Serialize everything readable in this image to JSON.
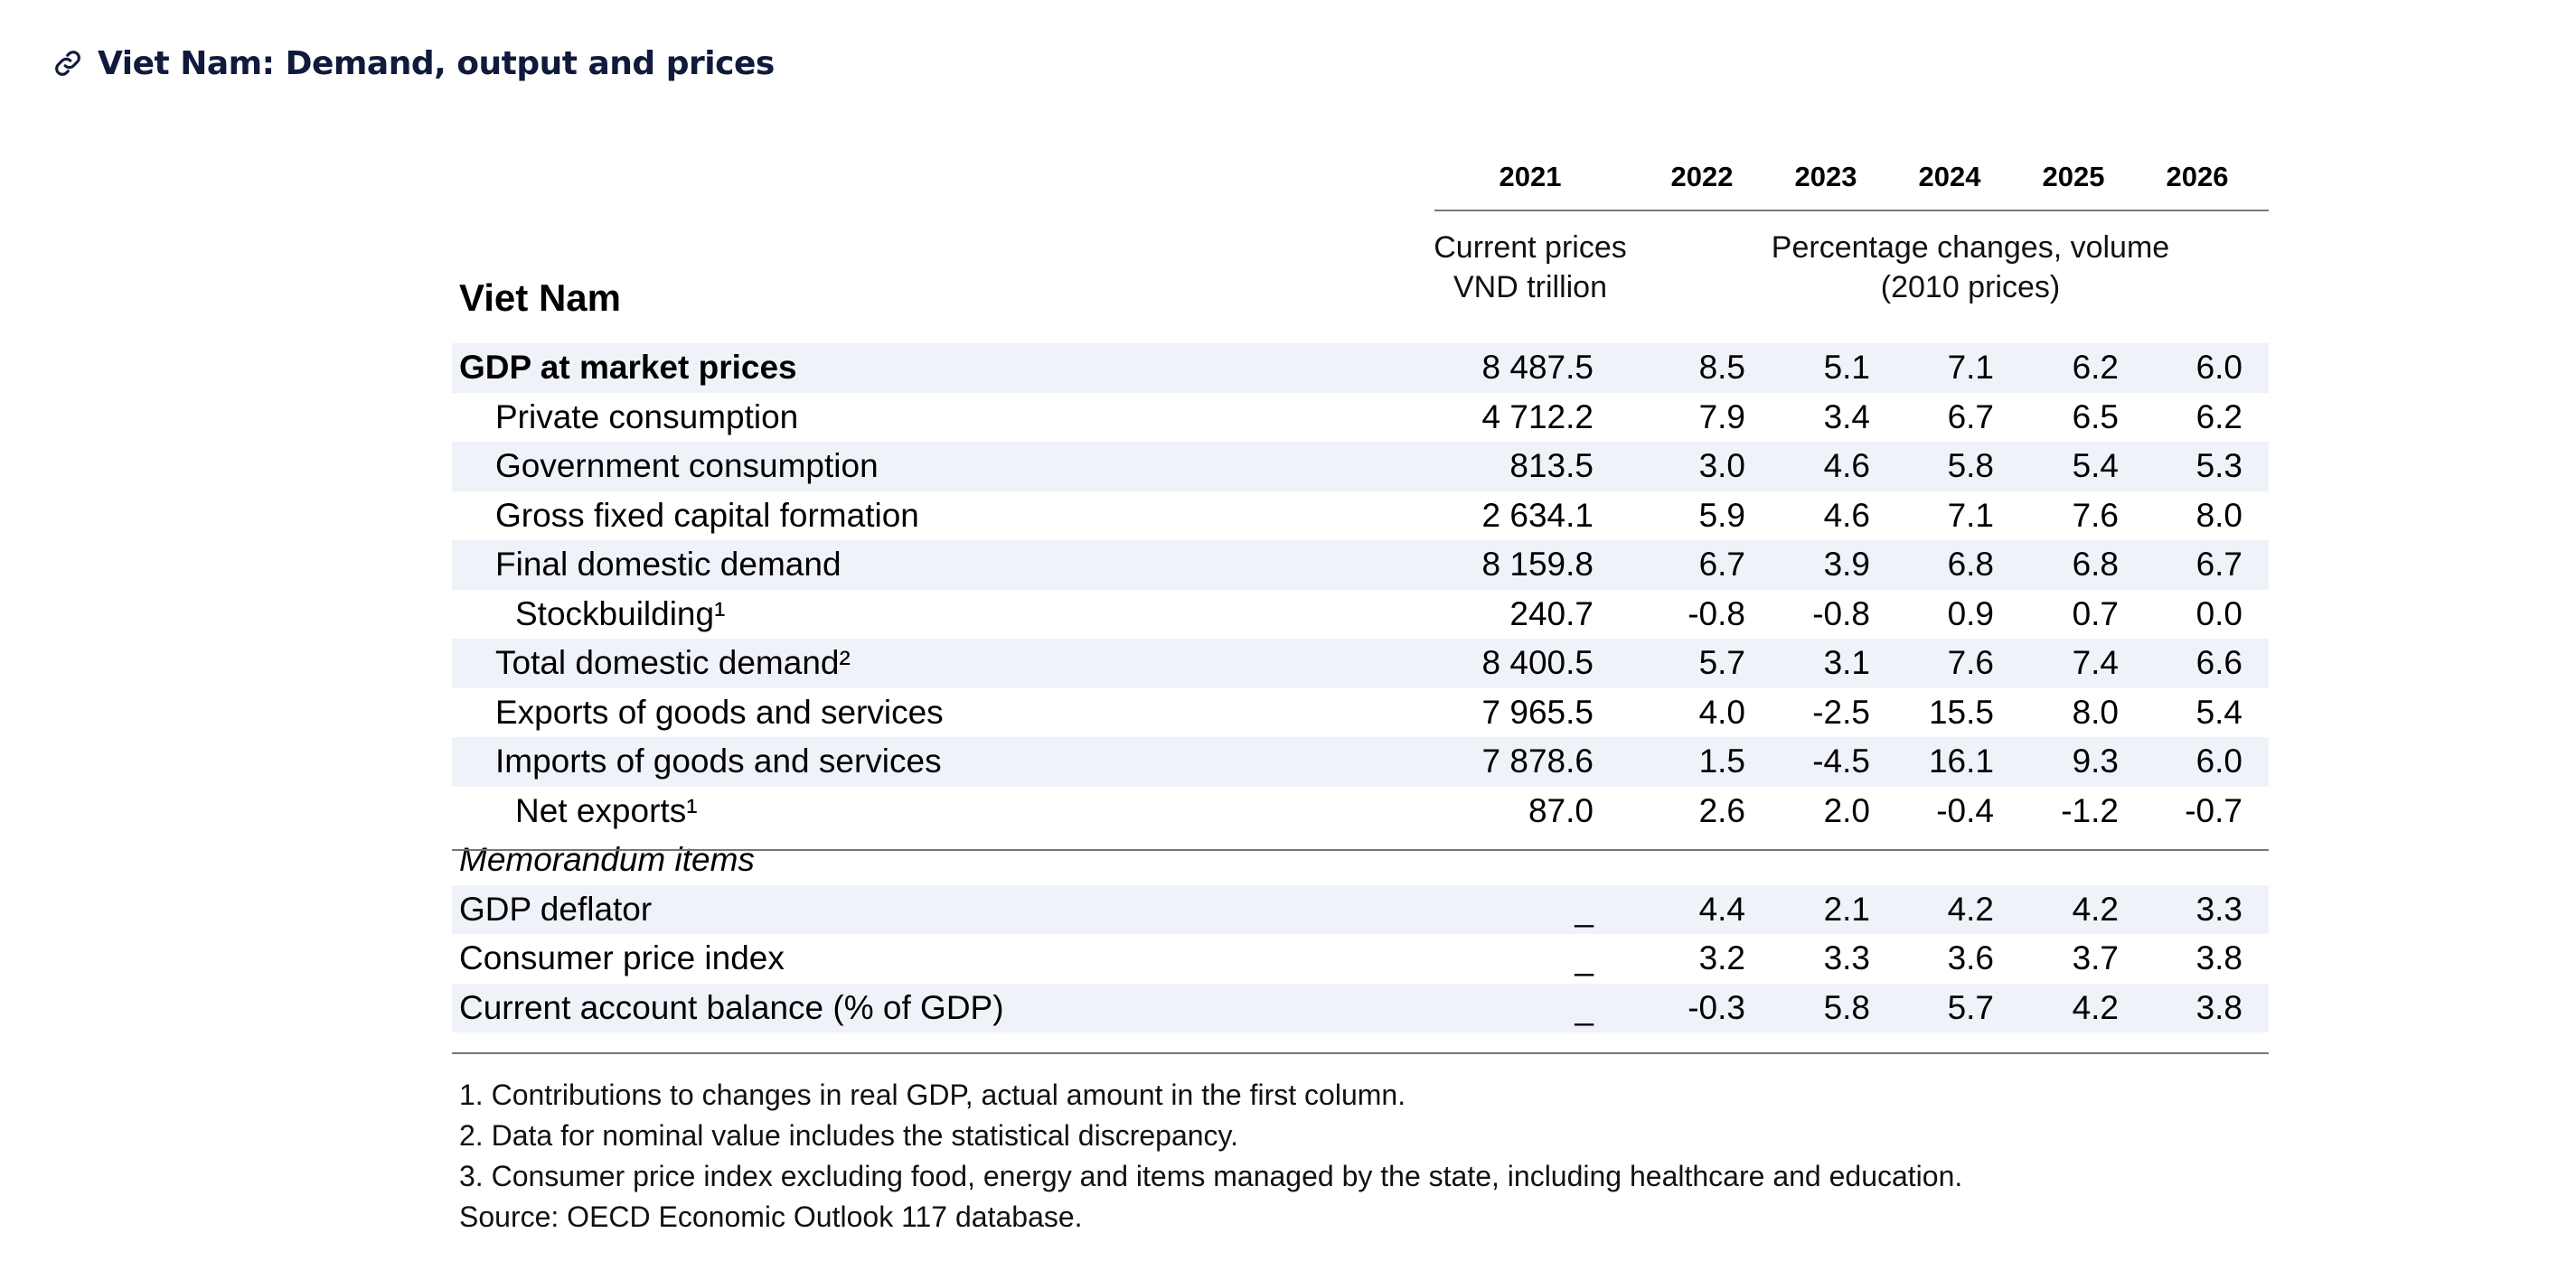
{
  "header": {
    "title": "Viet Nam: Demand, output and prices",
    "link_icon": "link-icon"
  },
  "table": {
    "country": "Viet Nam",
    "years": [
      "2021",
      "2022",
      "2023",
      "2024",
      "2025",
      "2026"
    ],
    "unit_current": [
      "Current prices",
      "VND trillion"
    ],
    "unit_volume": [
      "Percentage changes, volume",
      "(2010 prices)"
    ],
    "rows": [
      {
        "label": "GDP at market prices",
        "values": [
          "8 487.5",
          "8.5",
          "5.1",
          "7.1",
          "6.2",
          "6.0"
        ]
      },
      {
        "label": "Private consumption",
        "values": [
          "4 712.2",
          "7.9",
          "3.4",
          "6.7",
          "6.5",
          "6.2"
        ]
      },
      {
        "label": "Government consumption",
        "values": [
          "813.5",
          "3.0",
          "4.6",
          "5.8",
          "5.4",
          "5.3"
        ]
      },
      {
        "label": "Gross fixed capital formation",
        "values": [
          "2 634.1",
          "5.9",
          "4.6",
          "7.1",
          "7.6",
          "8.0"
        ]
      },
      {
        "label": "Final domestic demand",
        "values": [
          "8 159.8",
          "6.7",
          "3.9",
          "6.8",
          "6.8",
          "6.7"
        ]
      },
      {
        "label": "Stockbuilding¹",
        "values": [
          "240.7",
          "-0.8",
          "-0.8",
          "0.9",
          "0.7",
          "0.0"
        ]
      },
      {
        "label": "Total domestic demand²",
        "values": [
          "8 400.5",
          "5.7",
          "3.1",
          "7.6",
          "7.4",
          "6.6"
        ]
      },
      {
        "label": "Exports of goods and services",
        "values": [
          "7 965.5",
          "4.0",
          "-2.5",
          "15.5",
          "8.0",
          "5.4"
        ]
      },
      {
        "label": "Imports of goods and services",
        "values": [
          "7 878.6",
          "1.5",
          "-4.5",
          "16.1",
          "9.3",
          "6.0"
        ]
      },
      {
        "label": "Net exports¹",
        "values": [
          "87.0",
          "2.6",
          "2.0",
          "-0.4",
          "-1.2",
          "-0.7"
        ]
      }
    ],
    "memo_heading": "Memorandum items",
    "memo_rows": [
      {
        "label": "GDP deflator",
        "values": [
          "_",
          "4.4",
          "2.1",
          "4.2",
          "4.2",
          "3.3"
        ]
      },
      {
        "label": "Consumer price index",
        "values": [
          "_",
          "3.2",
          "3.3",
          "3.6",
          "3.7",
          "3.8"
        ]
      },
      {
        "label": "Current account balance (% of GDP)",
        "values": [
          "_",
          "-0.3",
          "5.8",
          "5.7",
          "4.2",
          "3.8"
        ]
      }
    ],
    "notes": [
      "1. Contributions to changes in real GDP, actual amount in the first column.",
      "2. Data for nominal value includes the statistical discrepancy.",
      "3. Consumer price index excluding food, energy and items managed by the state, including healthcare and education.",
      "Source: OECD Economic Outlook 117 database."
    ]
  }
}
